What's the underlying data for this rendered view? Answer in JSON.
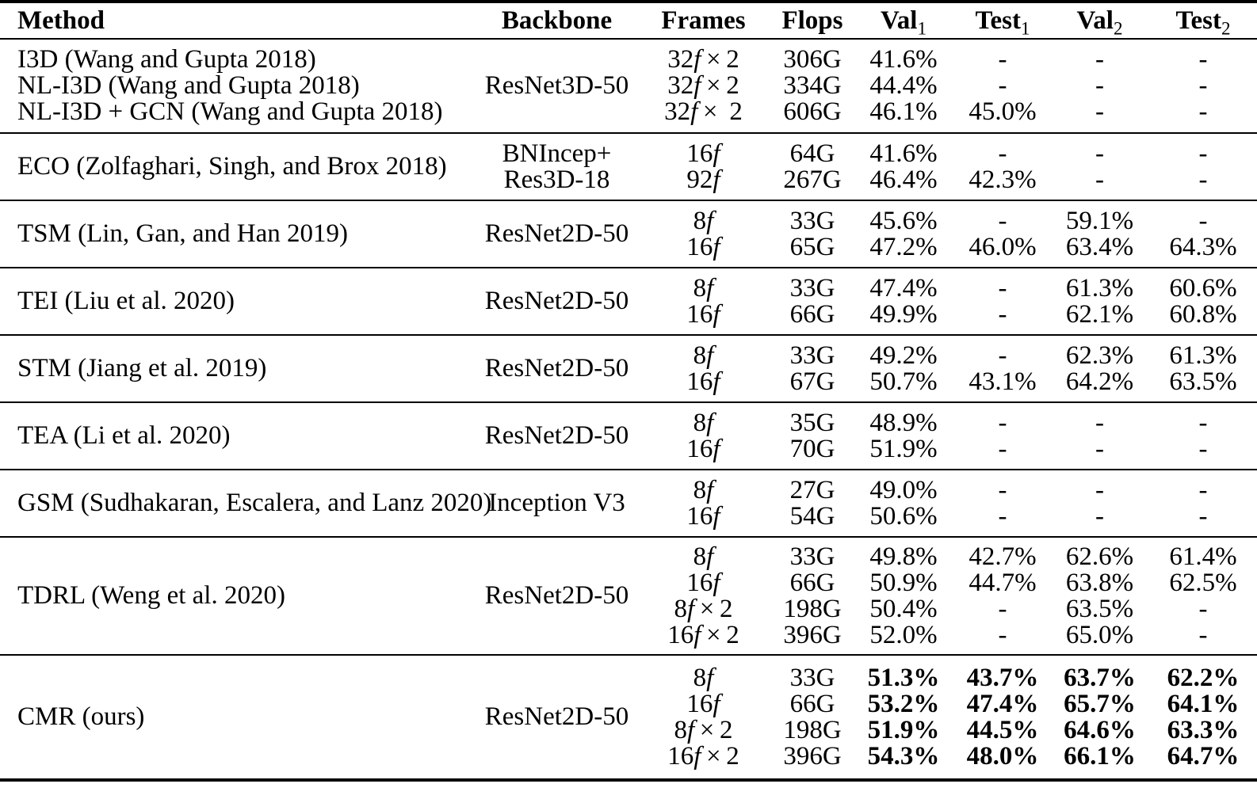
{
  "table": {
    "columns": [
      {
        "key": "method",
        "label": "Method",
        "sub": ""
      },
      {
        "key": "backbone",
        "label": "Backbone",
        "sub": ""
      },
      {
        "key": "frames",
        "label": "Frames",
        "sub": ""
      },
      {
        "key": "flops",
        "label": "Flops",
        "sub": ""
      },
      {
        "key": "val1",
        "label": "Val",
        "sub": "1"
      },
      {
        "key": "test1",
        "label": "Test",
        "sub": "1"
      },
      {
        "key": "val2",
        "label": "Val",
        "sub": "2"
      },
      {
        "key": "test2",
        "label": "Test",
        "sub": "2"
      }
    ],
    "groups": [
      {
        "method": [
          "I3D (Wang and Gupta 2018)",
          "NL-I3D (Wang and Gupta 2018)",
          "NL-I3D + GCN (Wang and Gupta 2018)"
        ],
        "backbone": [
          "ResNet3D-50"
        ],
        "frames": [
          "32f×2",
          "32f×2",
          "32f× 2"
        ],
        "flops": [
          "306G",
          "334G",
          "606G"
        ],
        "val1": [
          "41.6%",
          "44.4%",
          "46.1%"
        ],
        "test1": [
          "-",
          "-",
          "45.0%"
        ],
        "val2": [
          "-",
          "-",
          "-"
        ],
        "test2": [
          "-",
          "-",
          "-"
        ],
        "bold": false
      },
      {
        "method": [
          "ECO (Zolfaghari, Singh, and Brox 2018)"
        ],
        "backbone": [
          "BNIncep+",
          "Res3D-18"
        ],
        "frames": [
          "16f",
          "92f"
        ],
        "flops": [
          "64G",
          "267G"
        ],
        "val1": [
          "41.6%",
          "46.4%"
        ],
        "test1": [
          "-",
          "42.3%"
        ],
        "val2": [
          "-",
          "-"
        ],
        "test2": [
          "-",
          "-"
        ],
        "bold": false
      },
      {
        "method": [
          "TSM (Lin, Gan, and Han 2019)"
        ],
        "backbone": [
          "ResNet2D-50"
        ],
        "frames": [
          "8f",
          "16f"
        ],
        "flops": [
          "33G",
          "65G"
        ],
        "val1": [
          "45.6%",
          "47.2%"
        ],
        "test1": [
          "-",
          "46.0%"
        ],
        "val2": [
          "59.1%",
          "63.4%"
        ],
        "test2": [
          "-",
          "64.3%"
        ],
        "bold": false
      },
      {
        "method": [
          "TEI (Liu et al. 2020)"
        ],
        "backbone": [
          "ResNet2D-50"
        ],
        "frames": [
          "8f",
          "16f"
        ],
        "flops": [
          "33G",
          "66G"
        ],
        "val1": [
          "47.4%",
          "49.9%"
        ],
        "test1": [
          "-",
          "-"
        ],
        "val2": [
          "61.3%",
          "62.1%"
        ],
        "test2": [
          "60.6%",
          "60.8%"
        ],
        "bold": false
      },
      {
        "method": [
          "STM (Jiang et al. 2019)"
        ],
        "backbone": [
          "ResNet2D-50"
        ],
        "frames": [
          "8f",
          "16f"
        ],
        "flops": [
          "33G",
          "67G"
        ],
        "val1": [
          "49.2%",
          "50.7%"
        ],
        "test1": [
          "-",
          "43.1%"
        ],
        "val2": [
          "62.3%",
          "64.2%"
        ],
        "test2": [
          "61.3%",
          "63.5%"
        ],
        "bold": false
      },
      {
        "method": [
          "TEA (Li et al. 2020)"
        ],
        "backbone": [
          "ResNet2D-50"
        ],
        "frames": [
          "8f",
          "16f"
        ],
        "flops": [
          "35G",
          "70G"
        ],
        "val1": [
          "48.9%",
          "51.9%"
        ],
        "test1": [
          "-",
          "-"
        ],
        "val2": [
          "-",
          "-"
        ],
        "test2": [
          "-",
          "-"
        ],
        "bold": false
      },
      {
        "method": [
          "GSM (Sudhakaran, Escalera, and Lanz 2020)"
        ],
        "backbone": [
          "Inception V3"
        ],
        "frames": [
          "8f",
          "16f"
        ],
        "flops": [
          "27G",
          "54G"
        ],
        "val1": [
          "49.0%",
          "50.6%"
        ],
        "test1": [
          "-",
          "-"
        ],
        "val2": [
          "-",
          "-"
        ],
        "test2": [
          "-",
          "-"
        ],
        "bold": false
      },
      {
        "method": [
          "TDRL (Weng et al. 2020)"
        ],
        "backbone": [
          "ResNet2D-50"
        ],
        "frames": [
          "8f",
          "16f",
          "8f×2",
          "16f×2"
        ],
        "flops": [
          "33G",
          "66G",
          "198G",
          "396G"
        ],
        "val1": [
          "49.8%",
          "50.9%",
          "50.4%",
          "52.0%"
        ],
        "test1": [
          "42.7%",
          "44.7%",
          "-",
          "-"
        ],
        "val2": [
          "62.6%",
          "63.8%",
          "63.5%",
          "65.0%"
        ],
        "test2": [
          "61.4%",
          "62.5%",
          "-",
          "-"
        ],
        "bold": false
      },
      {
        "method": [
          "CMR (ours)"
        ],
        "backbone": [
          "ResNet2D-50"
        ],
        "frames": [
          "8f",
          "16f",
          "8f×2",
          "16f×2"
        ],
        "flops": [
          "33G",
          "66G",
          "198G",
          "396G"
        ],
        "val1": [
          "51.3%",
          "53.2%",
          "51.9%",
          "54.3%"
        ],
        "test1": [
          "43.7%",
          "47.4%",
          "44.5%",
          "48.0%"
        ],
        "val2": [
          "63.7%",
          "65.7%",
          "64.6%",
          "66.1%"
        ],
        "test2": [
          "62.2%",
          "64.1%",
          "63.3%",
          "64.7%"
        ],
        "bold": true
      }
    ],
    "text_color": "#000000",
    "background_color": "#ffffff"
  }
}
